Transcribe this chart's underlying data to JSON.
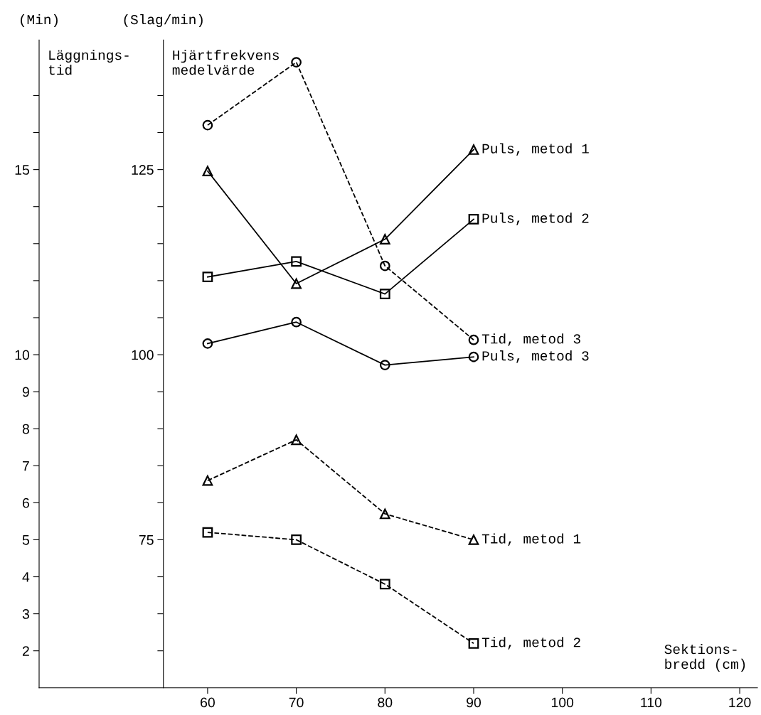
{
  "chart_data": {
    "type": "line",
    "xlabel": "Sektions-\nbredd (cm)",
    "ylabel": "(Min)",
    "y2label": "(Slag/min)",
    "x": [
      60,
      70,
      80,
      90
    ],
    "xlim": [
      41,
      122
    ],
    "xticks": [
      60,
      70,
      80,
      90,
      100,
      110,
      120
    ],
    "ylim": [
      1,
      18.5
    ],
    "yticks": [
      2,
      3,
      4,
      5,
      6,
      7,
      8,
      9,
      10,
      {
        "value": 11,
        "label": null
      },
      {
        "value": 12,
        "label": null
      },
      {
        "value": 13,
        "label": null
      },
      {
        "value": 14,
        "label": null
      },
      15,
      {
        "value": 16,
        "label": null
      },
      {
        "value": 17,
        "label": null
      }
    ],
    "y2lim": [
      55,
      142.5
    ],
    "y2ticks": [
      {
        "value": 60,
        "label": null
      },
      {
        "value": 65,
        "label": null
      },
      {
        "value": 70,
        "label": null
      },
      75,
      {
        "value": 80,
        "label": null
      },
      {
        "value": 85,
        "label": null
      },
      {
        "value": 90,
        "label": null
      },
      {
        "value": 95,
        "label": null
      },
      100,
      {
        "value": 105,
        "label": null
      },
      {
        "value": 110,
        "label": null
      },
      {
        "value": 115,
        "label": null
      },
      {
        "value": 120,
        "label": null
      },
      125,
      {
        "value": 130,
        "label": null
      },
      {
        "value": 135,
        "label": null
      }
    ],
    "grid": false,
    "legend": false,
    "series": [
      {
        "name": "Tid, metod 3",
        "color": "#000000",
        "values": [
          16.2,
          17.9,
          12.4,
          10.4
        ],
        "marker": "circle",
        "line_style": "dashed"
      },
      {
        "name": "Puls, metod 1",
        "color": "#000000",
        "axis": "y2",
        "values": [
          124.8,
          109.6,
          115.6,
          127.7
        ],
        "marker": "triangle",
        "line_style": "solid"
      },
      {
        "name": "Puls, metod 2",
        "color": "#000000",
        "axis": "y2",
        "values": [
          110.5,
          112.6,
          108.2,
          118.3
        ],
        "marker": "square",
        "line_style": "solid"
      },
      {
        "name": "Puls, metod 3",
        "color": "#000000",
        "axis": "y2",
        "values": [
          101.5,
          104.4,
          98.6,
          99.7
        ],
        "marker": "circle",
        "line_style": "solid"
      },
      {
        "name": "Tid, metod 1",
        "color": "#000000",
        "values": [
          6.6,
          7.7,
          5.7,
          5.0
        ],
        "marker": "triangle",
        "line_style": "dashed"
      },
      {
        "name": "Tid, metod 2",
        "color": "#000000",
        "values": [
          5.2,
          5.0,
          3.8,
          2.2
        ],
        "marker": "square",
        "line_style": "dashed"
      }
    ],
    "annotations": [
      "Läggnings-\ntid",
      "Hjärtfrekvens\nmedelvärde"
    ]
  }
}
